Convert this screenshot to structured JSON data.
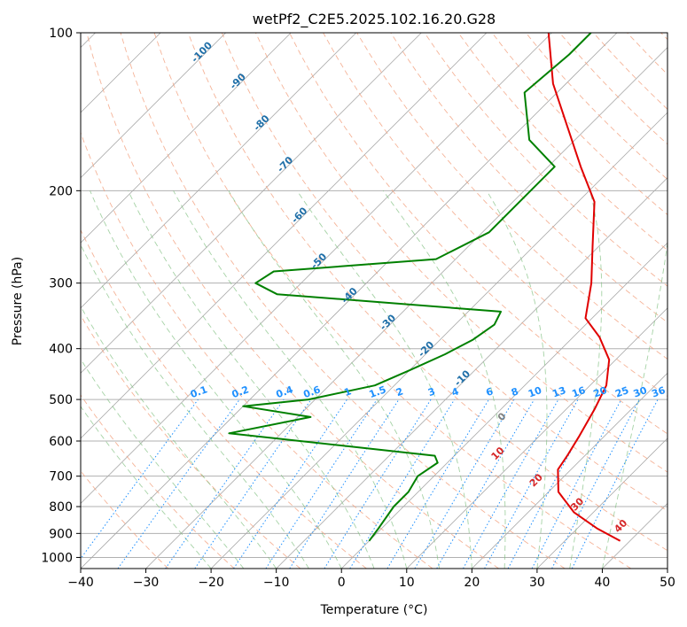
{
  "chart_data": {
    "type": "line",
    "title": "wetPf2_C2E5.2025.102.16.20.G28",
    "xlabel": "Temperature (°C)",
    "ylabel": "Pressure (hPa)",
    "xlim": [
      -40,
      50
    ],
    "ylim": [
      1050,
      100
    ],
    "y_scale": "log",
    "skew": "skew-T (isotherms slanted 45°)",
    "grid": true,
    "x_ticks": [
      -40,
      -30,
      -20,
      -10,
      0,
      10,
      20,
      30,
      40,
      50
    ],
    "x_tick_labels": [
      "−40",
      "−30",
      "−20",
      "−10",
      "0",
      "10",
      "20",
      "30",
      "40",
      "50"
    ],
    "y_ticks": [
      100,
      200,
      300,
      400,
      500,
      600,
      700,
      800,
      900,
      1000
    ],
    "y_tick_labels": [
      "100",
      "200",
      "300",
      "400",
      "500",
      "600",
      "700",
      "800",
      "900",
      "1000"
    ],
    "series": [
      {
        "color": "#e00000",
        "description": "temperature profile",
        "points": [
          [
            38.5,
            930
          ],
          [
            33,
            880
          ],
          [
            27,
            820
          ],
          [
            21.5,
            750
          ],
          [
            18,
            680
          ],
          [
            17.3,
            640
          ],
          [
            16.2,
            590
          ],
          [
            14.3,
            520
          ],
          [
            12.5,
            470
          ],
          [
            9,
            420
          ],
          [
            4,
            380
          ],
          [
            -1,
            350
          ],
          [
            -5.5,
            300
          ],
          [
            -11,
            255
          ],
          [
            -17.5,
            210
          ],
          [
            -25,
            180
          ],
          [
            -33.5,
            150
          ],
          [
            -42,
            125
          ],
          [
            -50.5,
            100
          ]
        ]
      },
      {
        "color": "#008000",
        "description": "dewpoint profile",
        "points": [
          [
            0,
            930
          ],
          [
            -0.5,
            880
          ],
          [
            -1.5,
            800
          ],
          [
            -1.5,
            750
          ],
          [
            -2.5,
            700
          ],
          [
            -1.5,
            660
          ],
          [
            -3,
            640
          ],
          [
            -38,
            580
          ],
          [
            -28,
            540
          ],
          [
            -40,
            515
          ],
          [
            -31,
            500
          ],
          [
            -23,
            470
          ],
          [
            -20,
            440
          ],
          [
            -17,
            410
          ],
          [
            -15,
            385
          ],
          [
            -14,
            360
          ],
          [
            -15,
            340
          ],
          [
            -52,
            315
          ],
          [
            -57,
            300
          ],
          [
            -56,
            285
          ],
          [
            -33,
            270
          ],
          [
            -29,
            240
          ],
          [
            -29,
            210
          ],
          [
            -29,
            180
          ],
          [
            -37,
            160
          ],
          [
            -45,
            130
          ],
          [
            -44,
            110
          ],
          [
            -44,
            100
          ]
        ]
      }
    ],
    "isotherm_labels": {
      "color": "#1f6fa8",
      "items": [
        {
          "text": "-100",
          "t": -100
        },
        {
          "text": "-90",
          "t": -90
        },
        {
          "text": "-80",
          "t": -80
        },
        {
          "text": "-70",
          "t": -70
        },
        {
          "text": "-60",
          "t": -60
        },
        {
          "text": "-50",
          "t": -50
        },
        {
          "text": "-40",
          "t": -40
        },
        {
          "text": "-30",
          "t": -30
        },
        {
          "text": "-20",
          "t": -20
        },
        {
          "text": "-10",
          "t": -10
        }
      ]
    },
    "mixing_ratio_labels": {
      "color": "#1e90ff",
      "pressure": 500,
      "items": [
        "0.1",
        "0.2",
        "0.4",
        "0.6",
        "1",
        "1.5",
        "2",
        "3",
        "4",
        "6",
        "8",
        "10",
        "13",
        "16",
        "20",
        "25",
        "30",
        "36"
      ],
      "values": [
        0.1,
        0.2,
        0.4,
        0.6,
        1,
        1.5,
        2,
        3,
        4,
        6,
        8,
        10,
        13,
        16,
        20,
        25,
        30,
        36
      ]
    },
    "warm_isotherm_labels": {
      "color": "#d62728",
      "items": [
        {
          "text": "10",
          "t": 10
        },
        {
          "text": "20",
          "t": 20
        },
        {
          "text": "30",
          "t": 30
        },
        {
          "text": "40",
          "t": 40
        }
      ]
    },
    "zero_label": {
      "text": "0",
      "color": "#808080",
      "t": 0
    }
  }
}
